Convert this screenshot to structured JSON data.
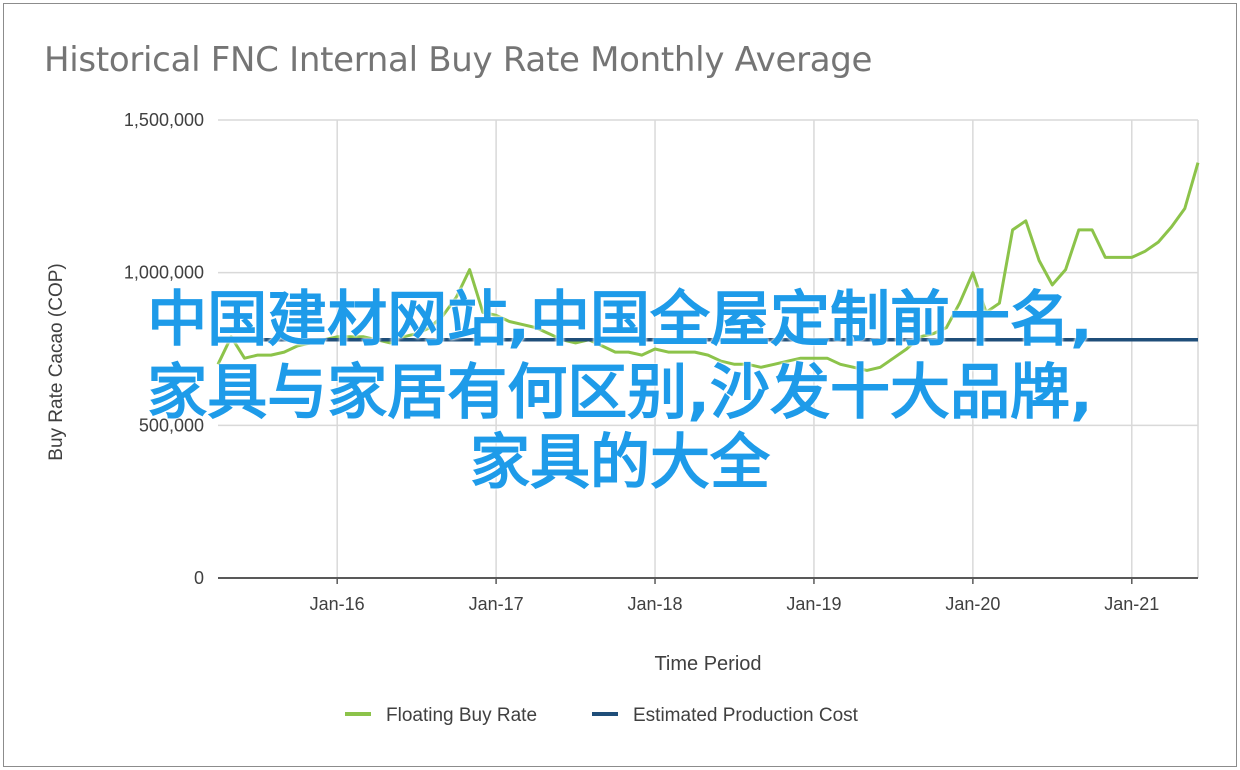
{
  "chart_data": {
    "type": "line",
    "title": "Historical FNC Internal Buy Rate Monthly Average",
    "xlabel": "Time Period",
    "ylabel": "Buy Rate Cacao (COP)",
    "ylim": [
      0,
      1500000
    ],
    "yticks": [
      0,
      500000,
      1000000,
      1500000
    ],
    "ytick_labels": [
      "0",
      "500,000",
      "1,000,000",
      "1,500,000"
    ],
    "xlim": [
      "2015-04",
      "2021-06"
    ],
    "xticks": [
      "2016-01",
      "2017-01",
      "2018-01",
      "2019-01",
      "2020-01",
      "2021-01"
    ],
    "xtick_labels": [
      "Jan-16",
      "Jan-17",
      "Jan-18",
      "Jan-19",
      "Jan-20",
      "Jan-21"
    ],
    "grid": true,
    "legend_position": "bottom",
    "colors": {
      "floating": "#8cc34a",
      "estimated": "#1f4e79",
      "grid": "#d9d9d9",
      "axis": "#595959",
      "overlay": "#1e9be9"
    },
    "series": [
      {
        "name": "Floating Buy Rate",
        "color": "#8cc34a",
        "x": [
          "2015-04",
          "2015-05",
          "2015-06",
          "2015-07",
          "2015-08",
          "2015-09",
          "2015-10",
          "2015-11",
          "2015-12",
          "2016-01",
          "2016-02",
          "2016-03",
          "2016-04",
          "2016-05",
          "2016-06",
          "2016-07",
          "2016-08",
          "2016-09",
          "2016-10",
          "2016-11",
          "2016-12",
          "2017-01",
          "2017-02",
          "2017-03",
          "2017-04",
          "2017-05",
          "2017-06",
          "2017-07",
          "2017-08",
          "2017-09",
          "2017-10",
          "2017-11",
          "2017-12",
          "2018-01",
          "2018-02",
          "2018-03",
          "2018-04",
          "2018-05",
          "2018-06",
          "2018-07",
          "2018-08",
          "2018-09",
          "2018-10",
          "2018-11",
          "2018-12",
          "2019-01",
          "2019-02",
          "2019-03",
          "2019-04",
          "2019-05",
          "2019-06",
          "2019-07",
          "2019-08",
          "2019-09",
          "2019-10",
          "2019-11",
          "2019-12",
          "2020-01",
          "2020-02",
          "2020-03",
          "2020-04",
          "2020-05",
          "2020-06",
          "2020-07",
          "2020-08",
          "2020-09",
          "2020-10",
          "2020-11",
          "2020-12",
          "2021-01",
          "2021-02",
          "2021-03",
          "2021-04",
          "2021-05",
          "2021-06"
        ],
        "values": [
          700000,
          790000,
          720000,
          730000,
          730000,
          740000,
          760000,
          770000,
          780000,
          790000,
          790000,
          790000,
          780000,
          770000,
          790000,
          800000,
          820000,
          860000,
          920000,
          1010000,
          870000,
          860000,
          840000,
          830000,
          820000,
          800000,
          780000,
          770000,
          780000,
          760000,
          740000,
          740000,
          730000,
          750000,
          740000,
          740000,
          740000,
          730000,
          710000,
          700000,
          700000,
          690000,
          700000,
          710000,
          720000,
          720000,
          720000,
          700000,
          690000,
          680000,
          690000,
          720000,
          750000,
          790000,
          800000,
          820000,
          900000,
          1000000,
          870000,
          900000,
          1140000,
          1170000,
          1040000,
          960000,
          1010000,
          1140000,
          1140000,
          1050000,
          1050000,
          1050000,
          1070000,
          1100000,
          1150000,
          1210000,
          1360000
        ]
      },
      {
        "name": "Estimated Production Cost",
        "color": "#1f4e79",
        "x": [
          "2015-04",
          "2021-06"
        ],
        "values": [
          780000,
          780000
        ]
      }
    ]
  },
  "overlay": {
    "line1": "中国建材网站,中国全屋定制前十名,",
    "line2": "家具与家居有何区别,沙发十大品牌,",
    "line3": "家具的大全"
  }
}
